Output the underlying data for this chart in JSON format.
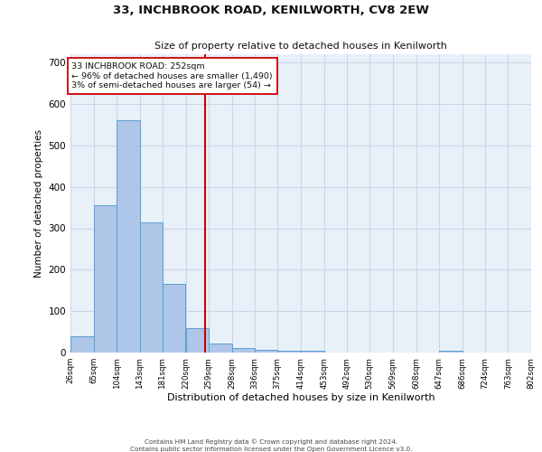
{
  "title1": "33, INCHBROOK ROAD, KENILWORTH, CV8 2EW",
  "title2": "Size of property relative to detached houses in Kenilworth",
  "xlabel": "Distribution of detached houses by size in Kenilworth",
  "ylabel": "Number of detached properties",
  "bar_values": [
    40,
    355,
    560,
    315,
    165,
    60,
    22,
    12,
    7,
    5,
    5,
    0,
    0,
    0,
    0,
    0,
    5,
    0,
    0,
    0
  ],
  "bin_edges": [
    26,
    65,
    104,
    143,
    181,
    220,
    259,
    298,
    336,
    375,
    414,
    453,
    492,
    530,
    569,
    608,
    647,
    686,
    724,
    763,
    802
  ],
  "bin_labels": [
    "26sqm",
    "65sqm",
    "104sqm",
    "143sqm",
    "181sqm",
    "220sqm",
    "259sqm",
    "298sqm",
    "336sqm",
    "375sqm",
    "414sqm",
    "453sqm",
    "492sqm",
    "530sqm",
    "569sqm",
    "608sqm",
    "647sqm",
    "686sqm",
    "724sqm",
    "763sqm",
    "802sqm"
  ],
  "bar_color": "#aec6e8",
  "bar_edge_color": "#5a9fd4",
  "vline_x": 252,
  "vline_color": "#cc0000",
  "annotation_line1": "33 INCHBROOK ROAD: 252sqm",
  "annotation_line2": "← 96% of detached houses are smaller (1,490)",
  "annotation_line3": "3% of semi-detached houses are larger (54) →",
  "annotation_box_color": "#cc0000",
  "ylim": [
    0,
    720
  ],
  "yticks": [
    0,
    100,
    200,
    300,
    400,
    500,
    600,
    700
  ],
  "grid_color": "#c8d8ea",
  "bg_color": "#e8f0f8",
  "footer1": "Contains HM Land Registry data © Crown copyright and database right 2024.",
  "footer2": "Contains public sector information licensed under the Open Government Licence v3.0."
}
